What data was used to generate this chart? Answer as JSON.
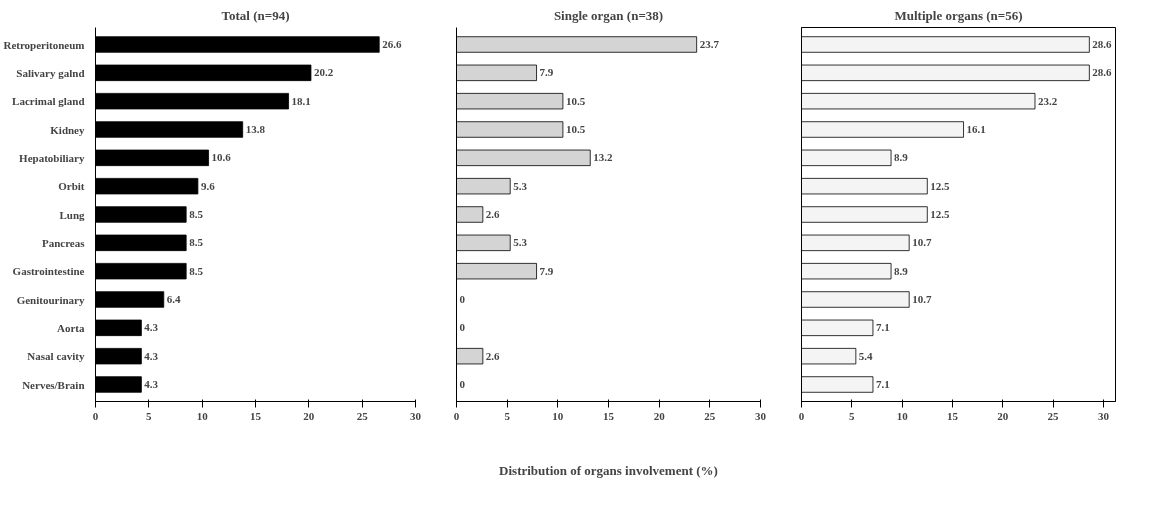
{
  "chart_data": [
    {
      "type": "bar",
      "title": "Total (n=94)",
      "orientation": "horizontal",
      "categories": [
        "Retroperitoneum",
        "Salivary galnd",
        "Lacrimal gland",
        "Kidney",
        "Hepatobiliary",
        "Orbit",
        "Lung",
        "Pancreas",
        "Gastrointestine",
        "Genitourinary",
        "Aorta",
        "Nasal cavity",
        "Nerves/Brain"
      ],
      "values": [
        26.6,
        20.2,
        18.1,
        13.8,
        10.6,
        9.6,
        8.5,
        8.5,
        8.5,
        6.4,
        4.3,
        4.3,
        4.3
      ],
      "color": "#000000",
      "xlim": [
        0,
        30
      ],
      "xticks": [
        0,
        5,
        10,
        15,
        20,
        25,
        30
      ],
      "data_labels": true,
      "grid": false
    },
    {
      "type": "bar",
      "title": "Single organ (n=38)",
      "orientation": "horizontal",
      "xlabel": "Distribution of organs involvement (%)",
      "categories": [
        null,
        null,
        null,
        null,
        null,
        null,
        null,
        null,
        null,
        null,
        null,
        null,
        null
      ],
      "values": [
        23.7,
        7.9,
        10.5,
        10.5,
        13.2,
        5.3,
        2.6,
        5.3,
        7.9,
        0,
        0,
        2.6,
        0
      ],
      "color": "#d4d4d4",
      "xlim": [
        0,
        30
      ],
      "xticks": [
        0,
        5,
        10,
        15,
        20,
        25,
        30
      ],
      "data_labels": true,
      "grid": false,
      "tick_labels": "x"
    },
    {
      "type": "bar",
      "title": "Multiple organs (n=56)",
      "orientation": "horizontal",
      "categories": [
        null,
        null,
        null,
        null,
        null,
        null,
        null,
        null,
        null,
        null,
        null,
        null,
        null
      ],
      "values": [
        28.6,
        28.6,
        23.2,
        16.1,
        8.9,
        12.5,
        12.5,
        10.7,
        8.9,
        10.7,
        7.1,
        5.4,
        7.1
      ],
      "color": "#f4f4f4",
      "xlim": [
        0,
        31.2
      ],
      "xticks": [
        0,
        5,
        10,
        15,
        20,
        25,
        30
      ],
      "data_labels": true,
      "grid": false,
      "tick_labels": "x"
    }
  ]
}
